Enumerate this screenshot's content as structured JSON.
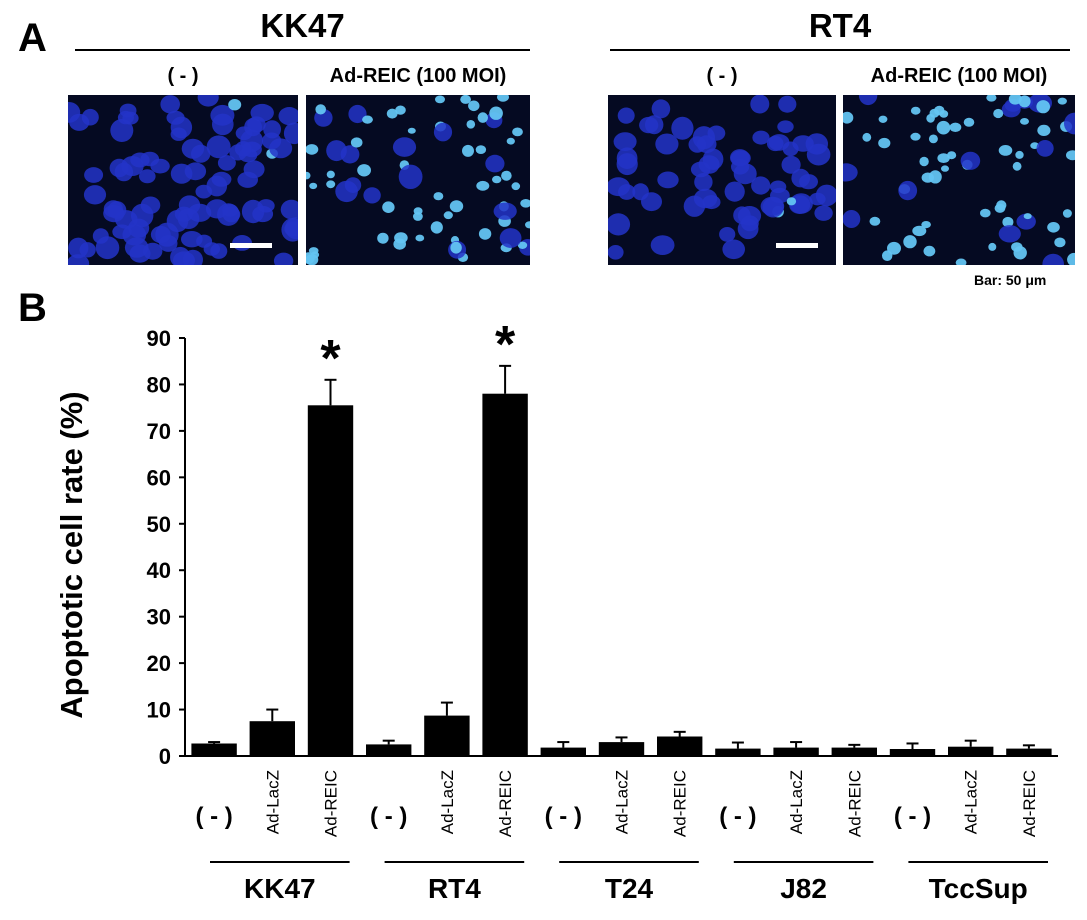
{
  "panel_a": {
    "letter": "A",
    "groups": [
      {
        "title": "KK47",
        "labels": [
          "( - )",
          "Ad-REIC (100 MOI)"
        ]
      },
      {
        "title": "RT4",
        "labels": [
          "( - )",
          "Ad-REIC (100 MOI)"
        ]
      }
    ],
    "scale_note": "Bar: 50 μm",
    "image_colors": {
      "background": "#050a22",
      "nucleus": "#2334c8",
      "apoptotic": "#63c4f2"
    },
    "images": [
      {
        "name": "kk47-control",
        "apoptotic_fraction": 0.03
      },
      {
        "name": "kk47-ad-reic",
        "apoptotic_fraction": 0.75
      },
      {
        "name": "rt4-control",
        "apoptotic_fraction": 0.02
      },
      {
        "name": "rt4-ad-reic",
        "apoptotic_fraction": 0.78
      }
    ]
  },
  "panel_b": {
    "letter": "B"
  },
  "chart_data": {
    "type": "bar",
    "ylabel": "Apoptotic cell rate (%)",
    "ylim": [
      0,
      90
    ],
    "yticks": [
      0,
      10,
      20,
      30,
      40,
      50,
      60,
      70,
      80,
      90
    ],
    "groups": [
      {
        "name": "KK47",
        "bars": [
          {
            "label": "( - )",
            "value": 2.7,
            "error": 0.3
          },
          {
            "label": "Ad-LacZ",
            "value": 7.5,
            "error": 2.5
          },
          {
            "label": "Ad-REIC",
            "value": 75.5,
            "error": 5.5,
            "mark": "*"
          }
        ]
      },
      {
        "name": "RT4",
        "bars": [
          {
            "label": "( - )",
            "value": 2.5,
            "error": 0.8
          },
          {
            "label": "Ad-LacZ",
            "value": 8.7,
            "error": 2.8
          },
          {
            "label": "Ad-REIC",
            "value": 78.0,
            "error": 6.0,
            "mark": "*"
          }
        ]
      },
      {
        "name": "T24",
        "bars": [
          {
            "label": "( - )",
            "value": 1.8,
            "error": 1.2
          },
          {
            "label": "Ad-LacZ",
            "value": 3.0,
            "error": 1.0
          },
          {
            "label": "Ad-REIC",
            "value": 4.2,
            "error": 1.0
          }
        ]
      },
      {
        "name": "J82",
        "bars": [
          {
            "label": "( - )",
            "value": 1.6,
            "error": 1.3
          },
          {
            "label": "Ad-LacZ",
            "value": 1.8,
            "error": 1.2
          },
          {
            "label": "Ad-REIC",
            "value": 1.8,
            "error": 0.6
          }
        ]
      },
      {
        "name": "TccSup",
        "bars": [
          {
            "label": "( - )",
            "value": 1.5,
            "error": 1.2
          },
          {
            "label": "Ad-LacZ",
            "value": 2.0,
            "error": 1.3
          },
          {
            "label": "Ad-REIC",
            "value": 1.6,
            "error": 0.7
          }
        ]
      }
    ],
    "bar_color": "#000000",
    "grid": false,
    "legend": "none"
  }
}
